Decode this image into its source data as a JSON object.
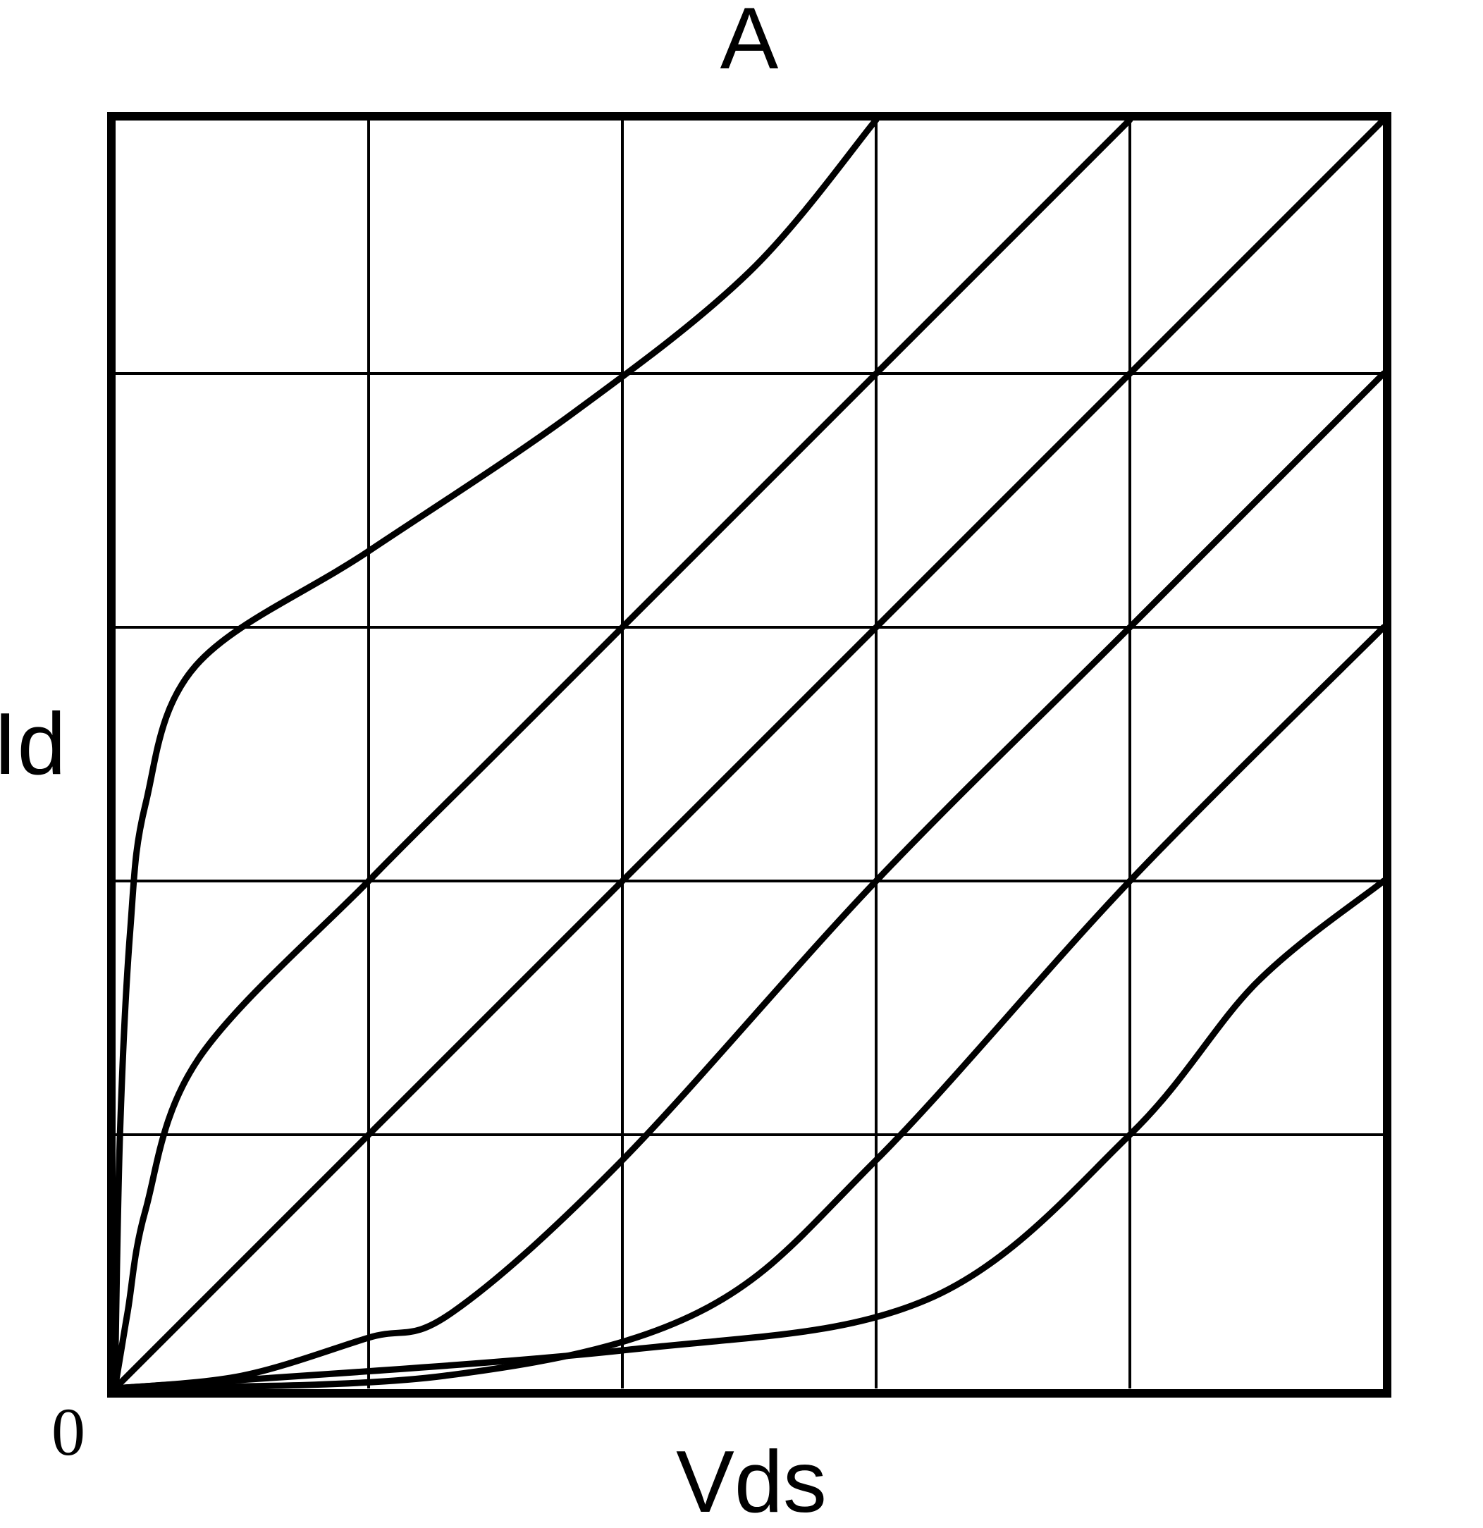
{
  "chart_data": {
    "type": "line",
    "title": "A",
    "xlabel": "Vds",
    "ylabel": "Id",
    "origin_label": "0",
    "xlim": [
      0,
      5
    ],
    "ylim": [
      0,
      5
    ],
    "grid": true,
    "line_color": "#000000",
    "series": [
      {
        "points": [
          [
            0,
            0
          ],
          [
            0.02,
            1.0
          ],
          [
            0.06,
            1.8
          ],
          [
            0.12,
            2.3
          ],
          [
            0.32,
            2.85
          ],
          [
            1.0,
            3.3
          ],
          [
            1.8,
            3.84
          ],
          [
            2.5,
            4.4
          ],
          [
            3.0,
            5.0
          ]
        ]
      },
      {
        "points": [
          [
            0,
            0
          ],
          [
            0.05,
            0.3
          ],
          [
            0.12,
            0.7
          ],
          [
            0.33,
            1.3
          ],
          [
            1.0,
            2.0
          ],
          [
            1.5,
            2.5
          ],
          [
            2.0,
            3.0
          ],
          [
            3.0,
            4.0
          ],
          [
            4.0,
            5.0
          ]
        ]
      },
      {
        "points": [
          [
            0,
            0
          ],
          [
            1.0,
            1.0
          ],
          [
            2.0,
            2.0
          ],
          [
            3.0,
            3.0
          ],
          [
            4.0,
            4.0
          ],
          [
            5.0,
            5.0
          ]
        ]
      },
      {
        "points": [
          [
            0,
            0
          ],
          [
            0.5,
            0.05
          ],
          [
            1.0,
            0.2
          ],
          [
            1.33,
            0.3
          ],
          [
            2.0,
            0.9
          ],
          [
            3.0,
            2.0
          ],
          [
            4.0,
            3.0
          ],
          [
            5.0,
            4.0
          ]
        ]
      },
      {
        "points": [
          [
            0,
            0
          ],
          [
            1.3,
            0.05
          ],
          [
            2.3,
            0.3
          ],
          [
            3.0,
            0.9
          ],
          [
            4.0,
            2.0
          ],
          [
            5.0,
            3.0
          ]
        ]
      },
      {
        "points": [
          [
            0,
            0
          ],
          [
            2.0,
            0.15
          ],
          [
            3.2,
            0.35
          ],
          [
            4.0,
            1.0
          ],
          [
            4.5,
            1.6
          ],
          [
            5.0,
            2.0
          ]
        ]
      }
    ]
  }
}
